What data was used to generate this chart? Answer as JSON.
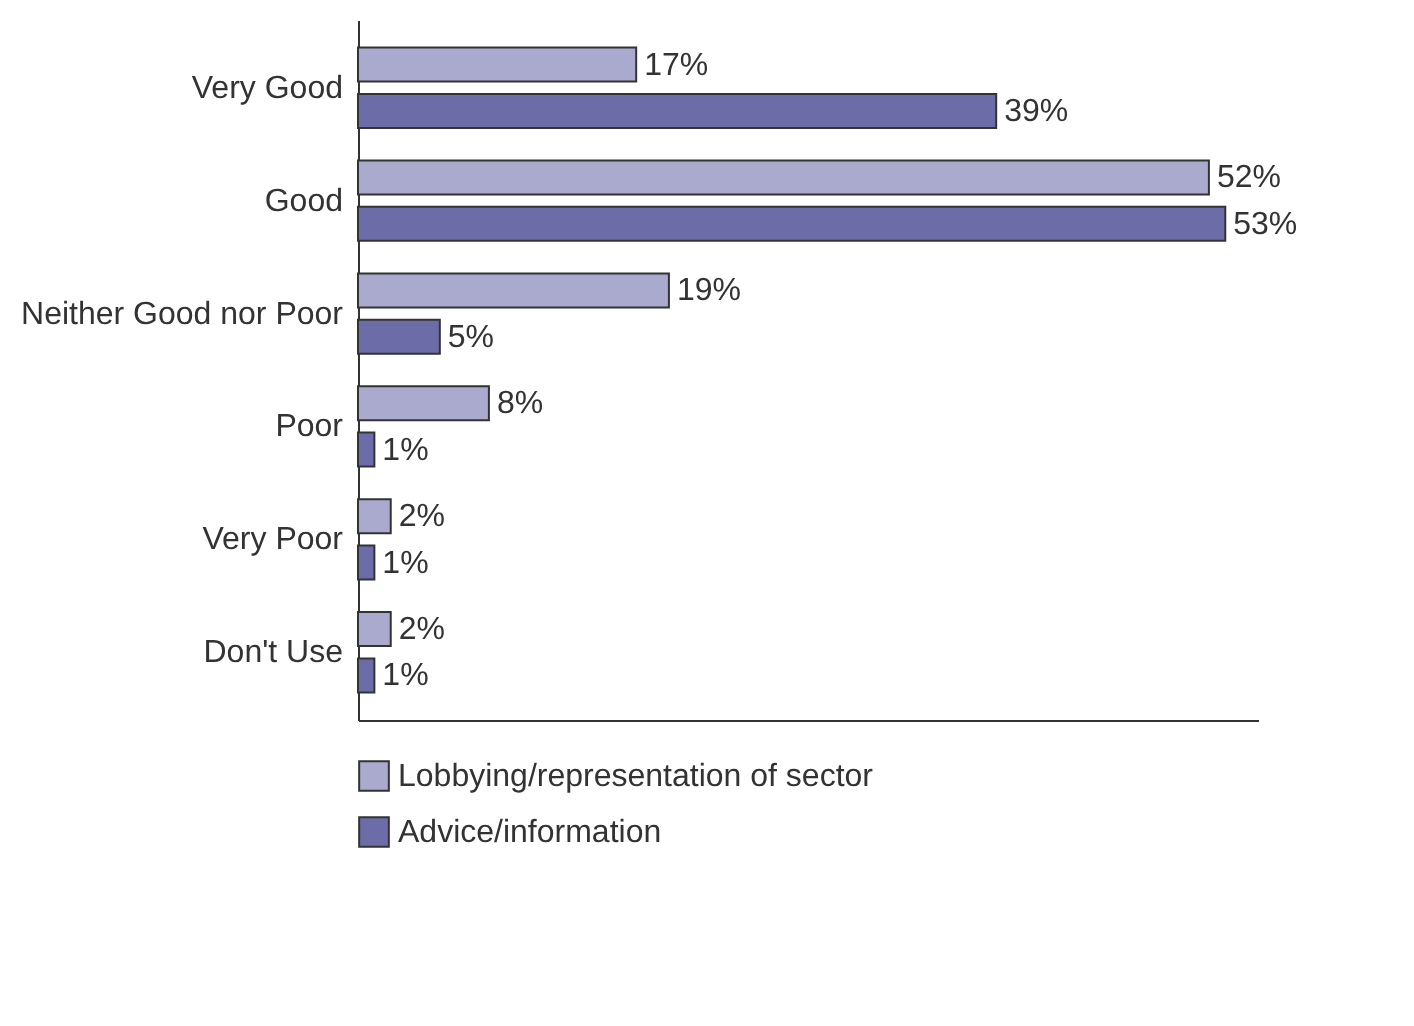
{
  "chart_data": {
    "type": "bar",
    "orientation": "horizontal",
    "categories": [
      "Very Good",
      "Good",
      "Neither Good nor Poor",
      "Poor",
      "Very Poor",
      "Don't Use"
    ],
    "series": [
      {
        "name": "Lobbying/representation of sector",
        "color": "#aaaacf",
        "values": [
          17,
          52,
          19,
          8,
          2,
          2
        ],
        "value_labels": [
          "17%",
          "52%",
          "19%",
          "8%",
          "2%",
          "2%"
        ]
      },
      {
        "name": "Advice/information",
        "color": "#6c6ca8",
        "values": [
          39,
          53,
          5,
          1,
          1,
          1
        ],
        "value_labels": [
          "39%",
          "53%",
          "5%",
          "1%",
          "1%",
          "1%"
        ]
      }
    ],
    "legend": "bottom",
    "tick_labels": "y",
    "grid": false
  }
}
